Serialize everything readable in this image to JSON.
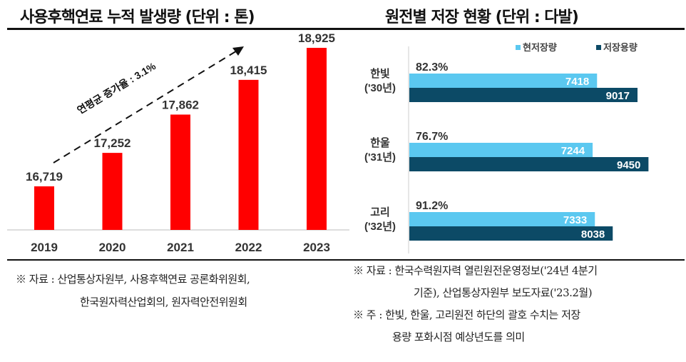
{
  "chart_data": [
    {
      "type": "bar",
      "title": "사용후핵연료 누적 발생량 (단위 : 톤)",
      "categories": [
        "2019",
        "2020",
        "2021",
        "2022",
        "2023"
      ],
      "values": [
        16719,
        17252,
        17862,
        18415,
        18925
      ],
      "data_labels": [
        "16,719",
        "17,252",
        "17,862",
        "18,415",
        "18,925"
      ],
      "annotation": "연평균 증가율 : 3.1%",
      "ylim": [
        16025,
        19000
      ],
      "grid": false,
      "color": "#ff0000"
    },
    {
      "type": "bar",
      "orientation": "horizontal",
      "title": "원전별 저장 현황 (단위 : 다발)",
      "categories": [
        [
          "한빛",
          "('30년)"
        ],
        [
          "한울",
          "('31년)"
        ],
        [
          "고리",
          "('32년)"
        ]
      ],
      "series": [
        {
          "name": "현저장량",
          "values": [
            7418,
            7244,
            7333
          ],
          "color": "#5bc8f0"
        },
        {
          "name": "저장용량",
          "values": [
            9017,
            9450,
            8038
          ],
          "color": "#0c4a66"
        }
      ],
      "ratio_labels": [
        "82.3%",
        "76.7%",
        "91.2%"
      ],
      "xlim": [
        0,
        10000
      ],
      "legend": "top-right",
      "grid": false
    }
  ],
  "notes": {
    "left": [
      "※ 자료 : 산업통상자원부, 사용후핵연료 공론화위원회,",
      "한국원자력산업회의, 원자력안전위원회"
    ],
    "right": [
      "※ 자료 : 한국수력원자력 열린원전운영정보('24년 4분기",
      "기준), 산업통상자원부 보도자료('23.2월)",
      "※ 주 : 한빛, 한울, 고리원전 하단의 괄호 수치는 저장",
      "용량 포화시점 예상년도를 의미"
    ]
  }
}
